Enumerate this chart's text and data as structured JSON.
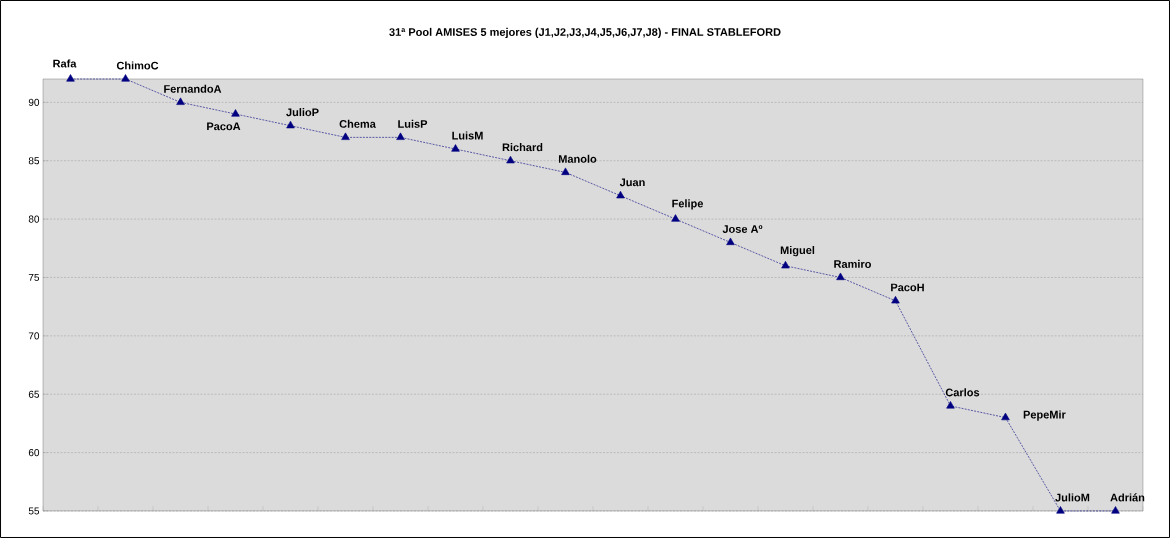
{
  "chart_data": {
    "type": "line",
    "title": "31ª Pool AMISES 5 mejores (J1,J2,J3,J4,J5,J6,J7,J8) - FINAL STABLEFORD",
    "categories": [
      null,
      null,
      null,
      null,
      null,
      null,
      null,
      null,
      null,
      null,
      null,
      null,
      null,
      null,
      null,
      null,
      null,
      null,
      null,
      null
    ],
    "values": [
      92,
      92,
      90,
      89,
      88,
      87,
      87,
      86,
      85,
      84,
      82,
      80,
      78,
      76,
      75,
      73,
      64,
      63,
      55,
      55
    ],
    "value_labels": [
      "Rafa",
      "ChimoC",
      "FernandoA",
      "PacoA",
      "JulioP",
      "Chema",
      "LuisP",
      "LuisM",
      "Richard",
      "Manolo",
      "Juan",
      "Felipe",
      "Jose Aº",
      "Miguel",
      "Ramiro",
      "PacoH",
      "Carlos",
      "PepeMir",
      "JulioM",
      "Adrián"
    ],
    "color": "#000080",
    "marker": "triangle",
    "line_style": "dashed",
    "grid": "y",
    "ylim": [
      55,
      92
    ],
    "yticks": [
      55,
      60,
      65,
      70,
      75,
      80,
      85,
      90
    ]
  }
}
